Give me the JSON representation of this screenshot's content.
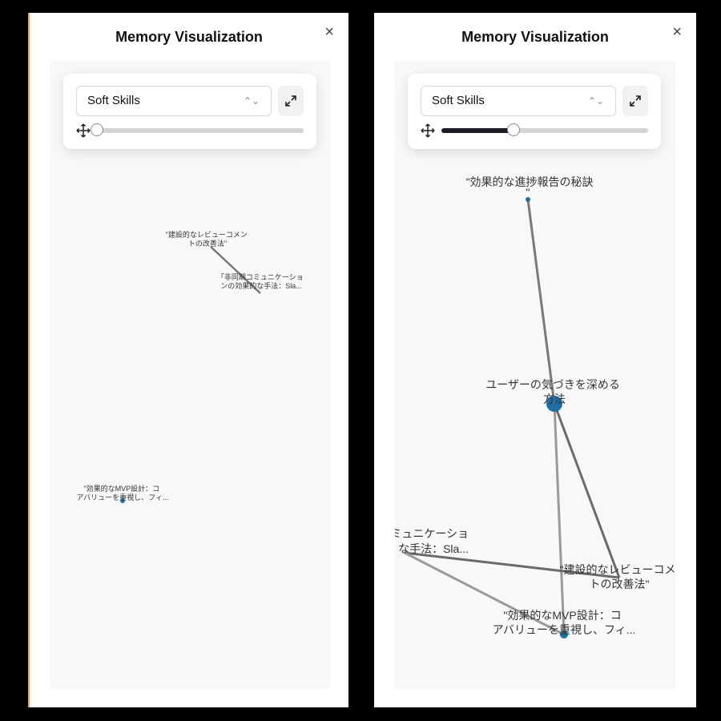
{
  "left_panel": {
    "title": "Memory Visualization",
    "close_glyph": "×",
    "category_select": "Soft Skills",
    "slider_level": 0.0,
    "nodes": {
      "review": [
        "\"建設的なレビューコメン",
        "トの改善法\""
      ],
      "async": [
        "「非同期コミュニケーショ",
        "ンの効果的な手法：Sla..."
      ],
      "mvp": [
        "\"効果的なMVP設計：コ",
        "アバリューを重視し、フィ..."
      ]
    }
  },
  "right_panel": {
    "title": "Memory Visualization",
    "close_glyph": "×",
    "category_select": "Soft Skills",
    "slider_level": 0.35,
    "nodes": {
      "progress": [
        "\"効果的な進捗報告の秘訣",
        "\""
      ],
      "user": [
        "ユーザーの気づきを深める",
        "方法"
      ],
      "async": [
        "ミュニケーショ",
        "な手法：Sla..."
      ],
      "review": [
        "\"建設的なレビューコメ",
        "トの改善法\""
      ],
      "mvp": [
        "\"効果的なMVP設計：コ",
        "アバリューを重視し、フィ..."
      ]
    }
  }
}
